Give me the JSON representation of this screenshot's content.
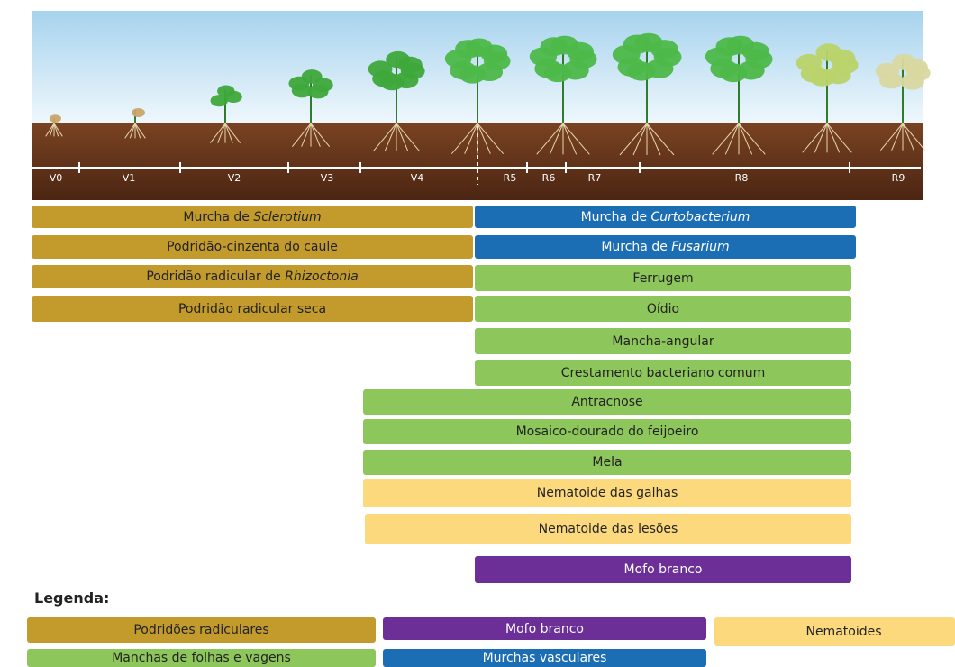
{
  "stages": [
    "V0",
    "V1",
    "V2",
    "V3",
    "V4",
    "R5",
    "R6",
    "R7",
    "R8",
    "R9"
  ],
  "diseases": [
    {
      "parts": [
        {
          "text": "Murcha de "
        },
        {
          "text": "Sclerotium",
          "italic": true
        }
      ],
      "color": "#c39b2c"
    },
    {
      "parts": [
        {
          "text": "Podridão-cinzenta do caule"
        }
      ],
      "color": "#c39b2c"
    },
    {
      "parts": [
        {
          "text": "Podridão radicular de "
        },
        {
          "text": "Rhizoctonia",
          "italic": true
        }
      ],
      "color": "#c39b2c"
    },
    {
      "parts": [
        {
          "text": "Podridão radicular seca"
        }
      ],
      "color": "#c39b2c"
    },
    {
      "parts": [
        {
          "text": "Murcha de "
        },
        {
          "text": "Curtobacterium",
          "italic": true
        }
      ],
      "color": "#1b6db4"
    },
    {
      "parts": [
        {
          "text": "Murcha de "
        },
        {
          "text": "Fusarium",
          "italic": true
        }
      ],
      "color": "#1b6db4"
    },
    {
      "parts": [
        {
          "text": "Ferrugem"
        }
      ],
      "color": "#8dc65b"
    },
    {
      "parts": [
        {
          "text": "Oídio"
        }
      ],
      "color": "#8dc65b"
    },
    {
      "parts": [
        {
          "text": "Mancha-angular"
        }
      ],
      "color": "#8dc65b"
    },
    {
      "parts": [
        {
          "text": "Crestamento bacteriano comum"
        }
      ],
      "color": "#8dc65b"
    },
    {
      "parts": [
        {
          "text": "Antracnose"
        }
      ],
      "color": "#8dc65b"
    },
    {
      "parts": [
        {
          "text": "Mosaico-dourado do feijoeiro"
        }
      ],
      "color": "#8dc65b"
    },
    {
      "parts": [
        {
          "text": "Mela"
        }
      ],
      "color": "#8dc65b"
    },
    {
      "parts": [
        {
          "text": "Nematoide das galhas"
        }
      ],
      "color": "#fcd97d"
    },
    {
      "parts": [
        {
          "text": "Nematoide das lesões"
        }
      ],
      "color": "#fcd97d"
    },
    {
      "parts": [
        {
          "text": "Mofo branco"
        }
      ],
      "color": "#6b2f97"
    }
  ],
  "legend": {
    "title": "Legenda:",
    "items": [
      {
        "label": "Podridões radiculares",
        "color": "#c39b2c"
      },
      {
        "label": "Mofo branco",
        "color": "#6b2f97"
      },
      {
        "label": "Nematoides",
        "color": "#fcd97d"
      },
      {
        "label": "Manchas de folhas e vagens",
        "color": "#8dc65b"
      },
      {
        "label": "Murchas vasculares",
        "color": "#1b6db4"
      }
    ]
  }
}
